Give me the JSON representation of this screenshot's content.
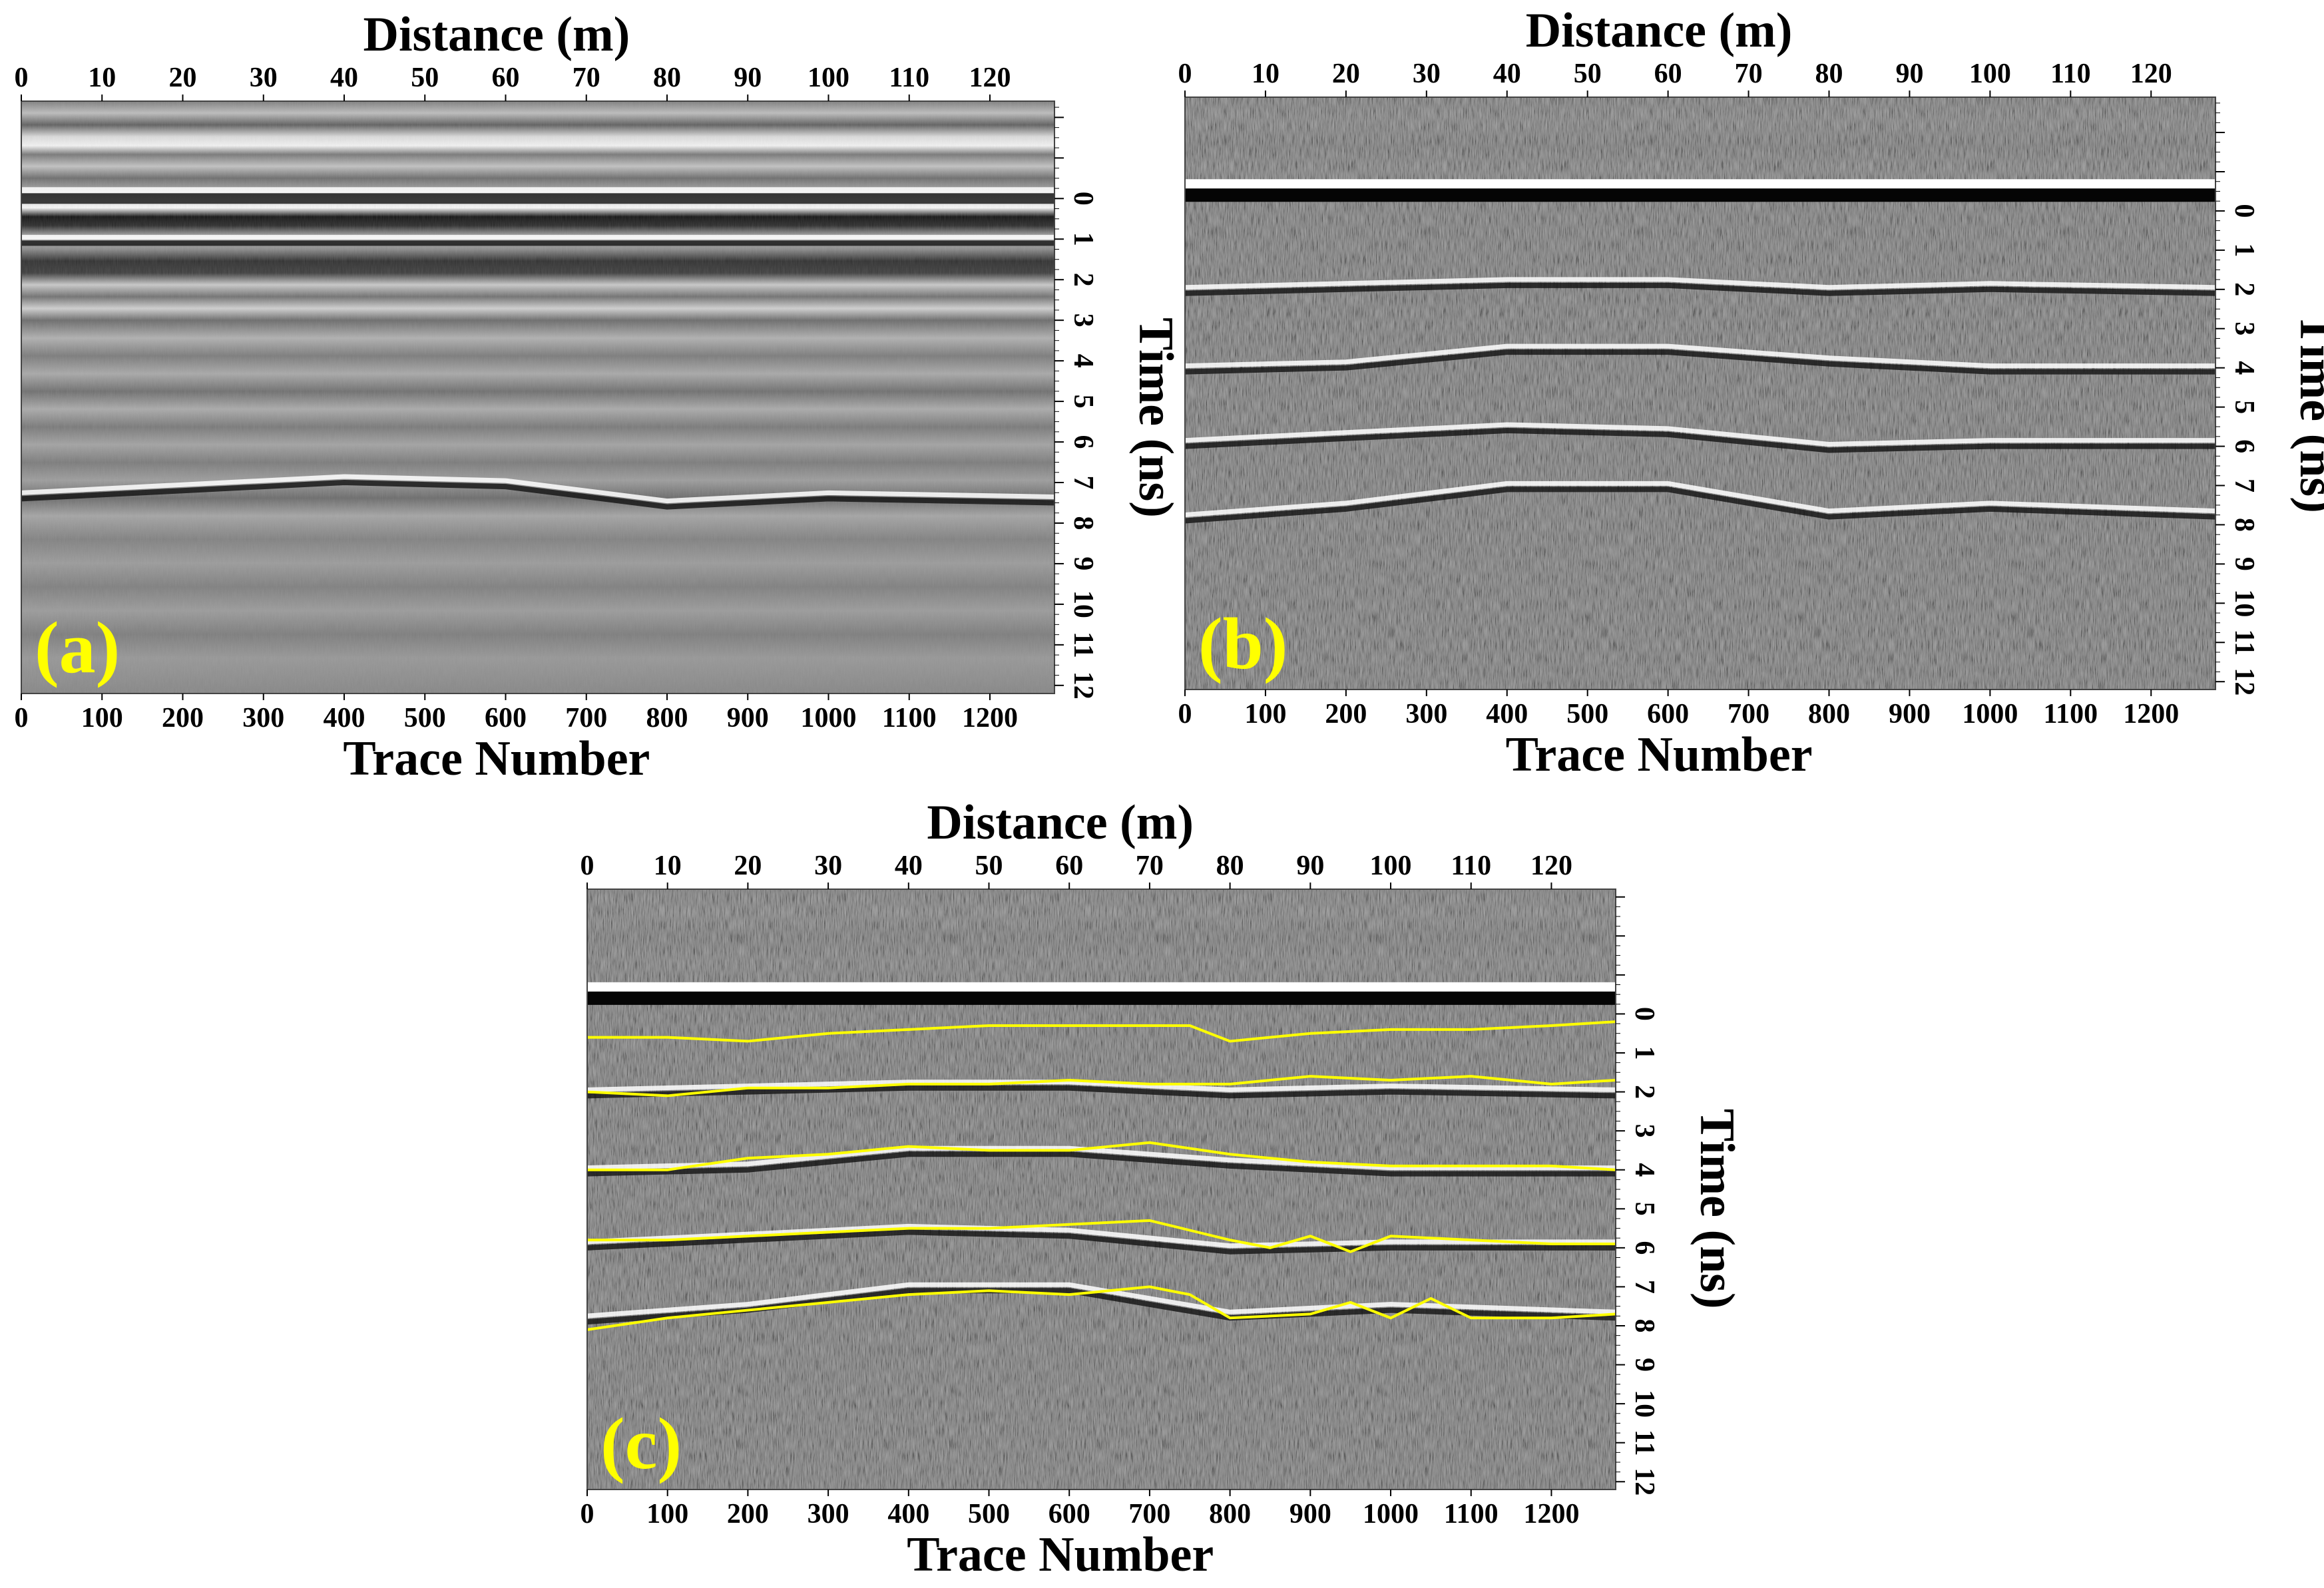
{
  "figure": {
    "panels": [
      {
        "label": "(a)",
        "variant": "raw"
      },
      {
        "label": "(b)",
        "variant": "processed"
      },
      {
        "label": "(c)",
        "variant": "picked"
      }
    ]
  },
  "chart_data": [
    {
      "type": "heatmap",
      "panel_label": "(a)",
      "title": "",
      "top_xlabel": "Distance (m)",
      "bottom_xlabel": "Trace Number",
      "right_ylabel": "Time (ns)",
      "distance_ticks": [
        "0",
        "10",
        "20",
        "30",
        "40",
        "50",
        "60",
        "70",
        "80",
        "90",
        "100",
        "110",
        "120"
      ],
      "trace_ticks": [
        "0",
        "100",
        "200",
        "300",
        "400",
        "500",
        "600",
        "700",
        "800",
        "900",
        "1000",
        "1100",
        "1200"
      ],
      "time_ticks": [
        "0",
        "1",
        "2",
        "3",
        "4",
        "5",
        "6",
        "7",
        "8",
        "9",
        "10",
        "11",
        "12"
      ],
      "xlim_trace": [
        0,
        1280
      ],
      "xlim_distance": [
        0,
        128
      ],
      "ylim_time": [
        -2.4,
        12.2
      ],
      "colormap": "grayscale",
      "legend": "none",
      "reflectors_ns": [
        {
          "trace": [
            0,
            200,
            400,
            600,
            800,
            1000,
            1280
          ],
          "time": [
            0.0,
            0.0,
            0.0,
            0.0,
            0.0,
            0.0,
            0.0
          ]
        },
        {
          "trace": [
            0,
            200,
            400,
            600,
            800,
            1000,
            1280
          ],
          "time": [
            1.1,
            1.1,
            1.1,
            1.1,
            1.1,
            1.1,
            1.1
          ]
        },
        {
          "trace": [
            0,
            200,
            400,
            600,
            800,
            1000,
            1280
          ],
          "time": [
            7.4,
            7.2,
            7.0,
            7.1,
            7.6,
            7.4,
            7.5
          ]
        }
      ]
    },
    {
      "type": "heatmap",
      "panel_label": "(b)",
      "title": "",
      "top_xlabel": "Distance (m)",
      "bottom_xlabel": "Trace Number",
      "right_ylabel": "Time (ns)",
      "distance_ticks": [
        "0",
        "10",
        "20",
        "30",
        "40",
        "50",
        "60",
        "70",
        "80",
        "90",
        "100",
        "110",
        "120"
      ],
      "trace_ticks": [
        "0",
        "100",
        "200",
        "300",
        "400",
        "500",
        "600",
        "700",
        "800",
        "900",
        "1000",
        "1100",
        "1200"
      ],
      "time_ticks": [
        "0",
        "1",
        "2",
        "3",
        "4",
        "5",
        "6",
        "7",
        "8",
        "9",
        "10",
        "11",
        "12"
      ],
      "xlim_trace": [
        0,
        1280
      ],
      "xlim_distance": [
        0,
        128
      ],
      "ylim_time": [
        -2.9,
        12.2
      ],
      "colormap": "grayscale",
      "legend": "none",
      "reflectors_ns": [
        {
          "trace": [
            0,
            200,
            400,
            600,
            800,
            1000,
            1280
          ],
          "time": [
            -0.3,
            -0.3,
            -0.3,
            -0.3,
            -0.3,
            -0.3,
            -0.3
          ]
        },
        {
          "trace": [
            0,
            200,
            400,
            600,
            800,
            1000,
            1280
          ],
          "time": [
            2.1,
            2.0,
            1.9,
            1.9,
            2.1,
            2.0,
            2.1
          ]
        },
        {
          "trace": [
            0,
            200,
            400,
            600,
            800,
            1000,
            1280
          ],
          "time": [
            4.1,
            4.0,
            3.6,
            3.6,
            3.9,
            4.1,
            4.1
          ]
        },
        {
          "trace": [
            0,
            200,
            400,
            600,
            800,
            1000,
            1280
          ],
          "time": [
            6.0,
            5.8,
            5.6,
            5.7,
            6.1,
            6.0,
            6.0
          ]
        },
        {
          "trace": [
            0,
            200,
            400,
            600,
            800,
            1000,
            1280
          ],
          "time": [
            7.9,
            7.6,
            7.1,
            7.1,
            7.8,
            7.6,
            7.8
          ]
        }
      ]
    },
    {
      "type": "heatmap",
      "panel_label": "(c)",
      "title": "",
      "top_xlabel": "Distance (m)",
      "bottom_xlabel": "Trace Number",
      "right_ylabel": "Time (ns)",
      "distance_ticks": [
        "0",
        "10",
        "20",
        "30",
        "40",
        "50",
        "60",
        "70",
        "80",
        "90",
        "100",
        "110",
        "120"
      ],
      "trace_ticks": [
        "0",
        "100",
        "200",
        "300",
        "400",
        "500",
        "600",
        "700",
        "800",
        "900",
        "1000",
        "1100",
        "1200"
      ],
      "time_ticks": [
        "0",
        "1",
        "2",
        "3",
        "4",
        "5",
        "6",
        "7",
        "8",
        "9",
        "10",
        "11",
        "12"
      ],
      "xlim_trace": [
        0,
        1280
      ],
      "xlim_distance": [
        0,
        128
      ],
      "ylim_time": [
        -3.2,
        12.2
      ],
      "colormap": "grayscale",
      "legend": "none",
      "reflectors_ns": [
        {
          "trace": [
            0,
            200,
            400,
            600,
            800,
            1000,
            1280
          ],
          "time": [
            -0.3,
            -0.3,
            -0.3,
            -0.3,
            -0.3,
            -0.3,
            -0.3
          ]
        },
        {
          "trace": [
            0,
            200,
            400,
            600,
            800,
            1000,
            1280
          ],
          "time": [
            2.1,
            2.0,
            1.9,
            1.9,
            2.1,
            2.0,
            2.1
          ]
        },
        {
          "trace": [
            0,
            200,
            400,
            600,
            800,
            1000,
            1280
          ],
          "time": [
            4.1,
            4.0,
            3.6,
            3.6,
            3.9,
            4.1,
            4.1
          ]
        },
        {
          "trace": [
            0,
            200,
            400,
            600,
            800,
            1000,
            1280
          ],
          "time": [
            6.0,
            5.8,
            5.6,
            5.7,
            6.1,
            6.0,
            6.0
          ]
        },
        {
          "trace": [
            0,
            200,
            400,
            600,
            800,
            1000,
            1280
          ],
          "time": [
            7.9,
            7.6,
            7.1,
            7.1,
            7.8,
            7.6,
            7.8
          ]
        }
      ],
      "picked_horizons_color": "#ffff00",
      "picked_horizons_ns": [
        {
          "trace": [
            0,
            100,
            200,
            300,
            400,
            500,
            600,
            700,
            750,
            800,
            900,
            1000,
            1100,
            1200,
            1280
          ],
          "time": [
            0.6,
            0.6,
            0.7,
            0.5,
            0.4,
            0.3,
            0.3,
            0.3,
            0.3,
            0.7,
            0.5,
            0.4,
            0.4,
            0.3,
            0.2
          ]
        },
        {
          "trace": [
            0,
            100,
            200,
            300,
            400,
            500,
            600,
            700,
            800,
            900,
            1000,
            1100,
            1200,
            1280
          ],
          "time": [
            2.0,
            2.1,
            1.9,
            1.9,
            1.8,
            1.8,
            1.7,
            1.8,
            1.8,
            1.6,
            1.7,
            1.6,
            1.8,
            1.7
          ]
        },
        {
          "trace": [
            0,
            100,
            200,
            300,
            400,
            500,
            600,
            700,
            800,
            900,
            1000,
            1100,
            1200,
            1280
          ],
          "time": [
            4.0,
            4.0,
            3.7,
            3.6,
            3.4,
            3.5,
            3.5,
            3.3,
            3.6,
            3.8,
            3.9,
            3.9,
            3.9,
            4.0
          ]
        },
        {
          "trace": [
            0,
            100,
            200,
            300,
            400,
            500,
            600,
            700,
            800,
            850,
            900,
            950,
            1000,
            1100,
            1200,
            1280
          ],
          "time": [
            5.8,
            5.8,
            5.7,
            5.6,
            5.5,
            5.5,
            5.4,
            5.3,
            5.8,
            6.0,
            5.7,
            6.1,
            5.7,
            5.8,
            5.9,
            5.9
          ]
        },
        {
          "trace": [
            0,
            100,
            200,
            300,
            400,
            500,
            600,
            700,
            750,
            800,
            900,
            950,
            1000,
            1050,
            1100,
            1200,
            1280
          ],
          "time": [
            8.1,
            7.8,
            7.6,
            7.4,
            7.2,
            7.1,
            7.2,
            7.0,
            7.2,
            7.8,
            7.7,
            7.4,
            7.8,
            7.3,
            7.8,
            7.8,
            7.7
          ]
        }
      ]
    }
  ]
}
